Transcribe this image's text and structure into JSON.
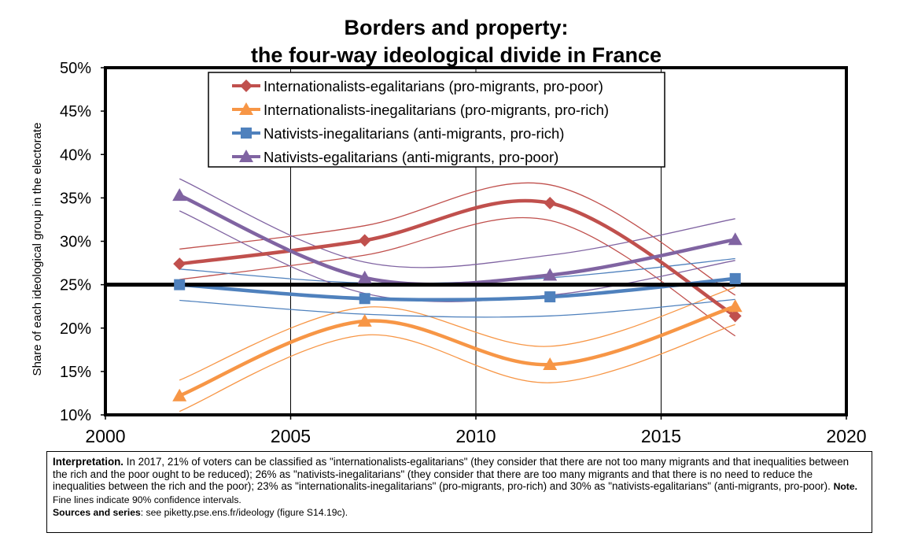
{
  "chart_data": {
    "type": "line",
    "title": "Borders and property:",
    "subtitle": "the four-way ideological divide in France",
    "xlabel": "",
    "ylabel": "Share of each ideological group in the electorate",
    "xlim": [
      2000,
      2020
    ],
    "ylim": [
      0.1,
      0.5
    ],
    "x_ticks": [
      2000,
      2005,
      2010,
      2015,
      2020
    ],
    "x_tick_labels": [
      "2000",
      "2005",
      "2010",
      "2015",
      "2020"
    ],
    "y_ticks": [
      0.1,
      0.15,
      0.2,
      0.25,
      0.3,
      0.35,
      0.4,
      0.45,
      0.5
    ],
    "y_tick_labels": [
      "10%",
      "15%",
      "20%",
      "25%",
      "30%",
      "35%",
      "40%",
      "45%",
      "50%"
    ],
    "grid": "vertical",
    "reference_line": 0.25,
    "legend_position": "top-center",
    "series": [
      {
        "name": "Internationalists-egalitarians (pro-migrants, pro-poor)",
        "color": "#c0504d",
        "marker": "diamond",
        "x": [
          2002,
          2007,
          2012,
          2017
        ],
        "y": [
          0.274,
          0.301,
          0.344,
          0.214
        ],
        "lower": [
          0.256,
          0.284,
          0.324,
          0.191
        ],
        "upper": [
          0.291,
          0.318,
          0.365,
          0.238
        ]
      },
      {
        "name": "Internationalists-inegalitarians (pro-migrants, pro-rich)",
        "color": "#f79646",
        "marker": "triangle",
        "x": [
          2002,
          2007,
          2012,
          2017
        ],
        "y": [
          0.122,
          0.208,
          0.158,
          0.225
        ],
        "lower": [
          0.104,
          0.192,
          0.137,
          0.204
        ],
        "upper": [
          0.14,
          0.224,
          0.179,
          0.247
        ]
      },
      {
        "name": "Nativists-inegalitarians (anti-migrants, pro-rich)",
        "color": "#4f81bd",
        "marker": "square",
        "x": [
          2002,
          2007,
          2012,
          2017
        ],
        "y": [
          0.25,
          0.234,
          0.236,
          0.257
        ],
        "lower": [
          0.232,
          0.216,
          0.214,
          0.233
        ],
        "upper": [
          0.268,
          0.252,
          0.258,
          0.28
        ]
      },
      {
        "name": "Nativists-egalitarians (anti-migrants, pro-poor)",
        "color": "#8064a2",
        "marker": "triangle",
        "x": [
          2002,
          2007,
          2012,
          2017
        ],
        "y": [
          0.353,
          0.258,
          0.261,
          0.302
        ],
        "lower": [
          0.335,
          0.24,
          0.238,
          0.278
        ],
        "upper": [
          0.372,
          0.276,
          0.284,
          0.326
        ]
      }
    ]
  },
  "note": {
    "lead": "Interpretation.",
    "body": " In 2017, 21% of voters can be classified as \"internationalists-egalitarians\" (they consider that there are not too many migrants and that inequalities between the rich and the poor ought to be reduced); 26% as \"nativists-inegalitarians\" (they consider that there are too many migrants and that there is no need to reduce the inequalities between the rich and the poor); 23% as \"internationalits-inegalitarians\" (pro-migrants, pro-rich) and 30% as \"nativists-egalitarians\" (anti-migrants, pro-poor).",
    "note_label": "Note.",
    "note_text": " Fine lines indicate 90% confidence intervals.",
    "sources_label": "Sources and series",
    "sources_text": ": see piketty.pse.ens.fr/ideology (figure S14.19c)."
  }
}
